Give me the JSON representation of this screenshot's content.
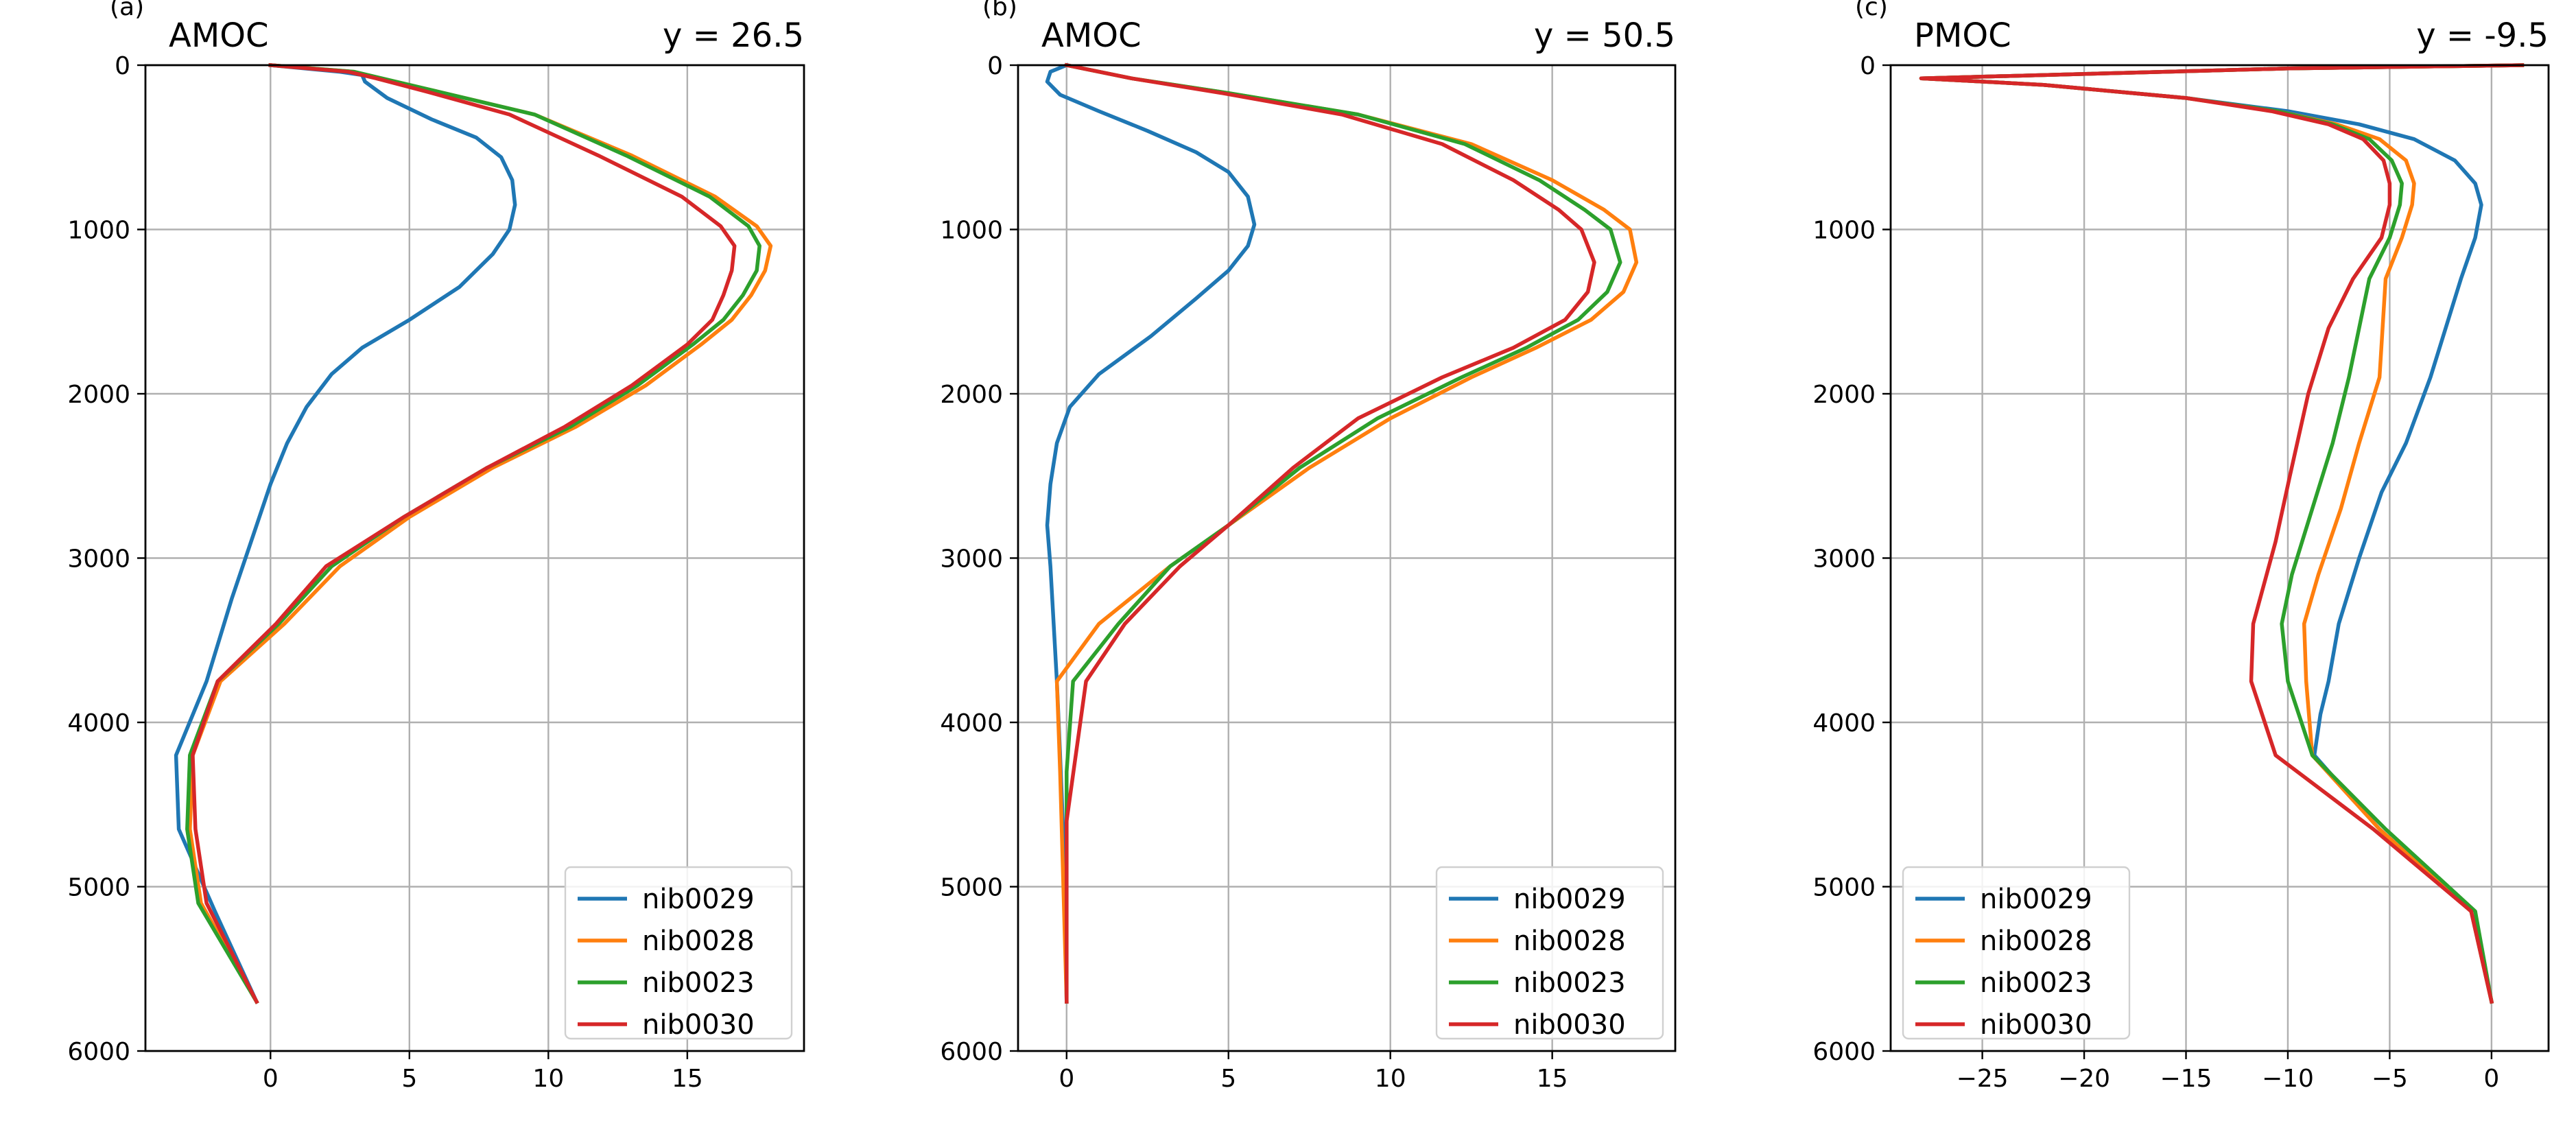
{
  "chart_data": [
    {
      "type": "line",
      "panel": "(a)",
      "title": "AMOC",
      "title_right": "y = 26.5",
      "xlim": [
        -4.5,
        19.2
      ],
      "ylim": [
        6000,
        0
      ],
      "xticks": [
        0,
        5,
        10,
        15
      ],
      "yticks": [
        0,
        1000,
        2000,
        3000,
        4000,
        5000,
        6000
      ],
      "grid": true,
      "legend_position": "lower-right",
      "series": [
        {
          "name": "nib0029",
          "color": "#1f77b4",
          "x": [
            0,
            2.5,
            3.3,
            3.4,
            4.2,
            5.8,
            7.4,
            8.3,
            8.7,
            8.8,
            8.6,
            8.0,
            6.8,
            5.0,
            3.3,
            2.2,
            1.3,
            0.6,
            0.0,
            -0.6,
            -1.4,
            -2.3,
            -3.4,
            -3.3,
            -2.0,
            -0.5
          ],
          "y": [
            0,
            40,
            60,
            100,
            200,
            330,
            440,
            560,
            700,
            850,
            1000,
            1150,
            1350,
            1550,
            1720,
            1880,
            2080,
            2300,
            2550,
            2850,
            3250,
            3750,
            4200,
            4650,
            5150,
            5700
          ]
        },
        {
          "name": "nib0028",
          "color": "#ff7f0e",
          "x": [
            0,
            3.0,
            4.0,
            6.0,
            9.5,
            13.0,
            16.0,
            17.5,
            18.0,
            17.8,
            17.3,
            16.6,
            15.5,
            13.5,
            11.0,
            8.0,
            5.0,
            2.5,
            0.5,
            -1.8,
            -2.8,
            -2.9,
            -2.5,
            -0.5
          ],
          "y": [
            0,
            40,
            80,
            160,
            300,
            550,
            800,
            980,
            1100,
            1250,
            1400,
            1550,
            1700,
            1950,
            2200,
            2450,
            2750,
            3050,
            3400,
            3750,
            4200,
            4650,
            5100,
            5700
          ]
        },
        {
          "name": "nib0023",
          "color": "#2ca02c",
          "x": [
            0,
            3.0,
            4.0,
            6.0,
            9.5,
            12.8,
            15.8,
            17.2,
            17.6,
            17.5,
            17.0,
            16.3,
            15.2,
            13.2,
            10.8,
            7.8,
            4.8,
            2.2,
            0.3,
            -1.9,
            -2.9,
            -3.0,
            -2.6,
            -0.5
          ],
          "y": [
            0,
            40,
            80,
            160,
            300,
            550,
            800,
            980,
            1100,
            1250,
            1400,
            1550,
            1700,
            1950,
            2200,
            2450,
            2750,
            3050,
            3400,
            3750,
            4200,
            4650,
            5100,
            5700
          ]
        },
        {
          "name": "nib0030",
          "color": "#d62728",
          "x": [
            0,
            2.8,
            3.8,
            5.6,
            8.6,
            11.8,
            14.8,
            16.2,
            16.7,
            16.6,
            16.3,
            15.9,
            15.0,
            13.0,
            10.6,
            7.8,
            4.8,
            2.0,
            0.2,
            -1.9,
            -2.8,
            -2.7,
            -2.3,
            -0.5
          ],
          "y": [
            0,
            40,
            80,
            160,
            300,
            550,
            800,
            980,
            1100,
            1250,
            1400,
            1550,
            1700,
            1950,
            2200,
            2450,
            2750,
            3050,
            3400,
            3750,
            4200,
            4650,
            5100,
            5700
          ]
        }
      ]
    },
    {
      "type": "line",
      "panel": "(b)",
      "title": "AMOC",
      "title_right": "y = 50.5",
      "xlim": [
        -1.5,
        18.8
      ],
      "ylim": [
        6000,
        0
      ],
      "xticks": [
        0,
        5,
        10,
        15
      ],
      "yticks": [
        0,
        1000,
        2000,
        3000,
        4000,
        5000,
        6000
      ],
      "grid": true,
      "legend_position": "lower-right",
      "series": [
        {
          "name": "nib0029",
          "color": "#1f77b4",
          "x": [
            0,
            -0.5,
            -0.6,
            -0.2,
            1.0,
            2.5,
            4.0,
            5.0,
            5.6,
            5.8,
            5.6,
            5.0,
            4.0,
            2.6,
            1.0,
            0.1,
            -0.3,
            -0.5,
            -0.6,
            -0.5,
            -0.4,
            -0.3,
            -0.2,
            -0.1,
            0.0
          ],
          "y": [
            0,
            40,
            100,
            180,
            280,
            400,
            530,
            650,
            800,
            970,
            1100,
            1250,
            1420,
            1650,
            1880,
            2080,
            2300,
            2550,
            2800,
            3050,
            3400,
            3750,
            4200,
            4700,
            5700
          ]
        },
        {
          "name": "nib0028",
          "color": "#ff7f0e",
          "x": [
            0,
            2.0,
            5.0,
            9.0,
            12.5,
            15.0,
            16.6,
            17.4,
            17.6,
            17.2,
            16.2,
            14.5,
            12.5,
            10.0,
            7.5,
            5.0,
            3.2,
            1.0,
            -0.3,
            -0.2,
            0.0
          ],
          "y": [
            0,
            80,
            170,
            300,
            480,
            700,
            880,
            1000,
            1200,
            1380,
            1550,
            1720,
            1900,
            2150,
            2450,
            2800,
            3050,
            3400,
            3750,
            4300,
            5700
          ]
        },
        {
          "name": "nib0023",
          "color": "#2ca02c",
          "x": [
            0,
            2.0,
            5.0,
            9.0,
            12.3,
            14.6,
            16.0,
            16.8,
            17.1,
            16.7,
            15.8,
            14.2,
            12.2,
            9.6,
            7.2,
            5.0,
            3.2,
            1.6,
            0.2,
            0.0,
            0.0
          ],
          "y": [
            0,
            80,
            170,
            300,
            480,
            700,
            880,
            1000,
            1200,
            1380,
            1550,
            1720,
            1900,
            2150,
            2450,
            2800,
            3050,
            3400,
            3750,
            4300,
            5700
          ]
        },
        {
          "name": "nib0030",
          "color": "#d62728",
          "x": [
            0,
            2.0,
            4.8,
            8.5,
            11.6,
            13.8,
            15.2,
            15.9,
            16.3,
            16.1,
            15.4,
            13.8,
            11.6,
            9.0,
            7.0,
            5.0,
            3.5,
            1.8,
            0.6,
            0.0,
            0.0
          ],
          "y": [
            0,
            80,
            170,
            300,
            480,
            700,
            880,
            1000,
            1200,
            1380,
            1550,
            1720,
            1900,
            2150,
            2450,
            2800,
            3050,
            3400,
            3750,
            4600,
            5700
          ]
        }
      ]
    },
    {
      "type": "line",
      "panel": "(c)",
      "title": "PMOC",
      "title_right": "y = -9.5",
      "xlim": [
        -29.5,
        2.8
      ],
      "ylim": [
        6000,
        0
      ],
      "xticks": [
        -25,
        -20,
        -15,
        -10,
        -5,
        0
      ],
      "yticks": [
        0,
        1000,
        2000,
        3000,
        4000,
        5000,
        6000
      ],
      "grid": true,
      "legend_position": "lower-left",
      "series": [
        {
          "name": "nib0029",
          "color": "#1f77b4",
          "x": [
            1.5,
            -10.0,
            -28.0,
            -22.0,
            -15.0,
            -10.0,
            -6.5,
            -3.8,
            -1.8,
            -0.8,
            -0.5,
            -0.8,
            -1.5,
            -3.0,
            -4.2,
            -5.4,
            -6.5,
            -7.5,
            -8.0,
            -8.4,
            -8.7,
            -5.5,
            -1.0,
            0.0
          ],
          "y": [
            0,
            20,
            80,
            120,
            200,
            280,
            360,
            450,
            580,
            720,
            850,
            1050,
            1300,
            1900,
            2300,
            2600,
            3000,
            3400,
            3750,
            3950,
            4200,
            4650,
            5150,
            5700
          ]
        },
        {
          "name": "nib0028",
          "color": "#ff7f0e",
          "x": [
            1.5,
            -10.0,
            -28.0,
            -22.0,
            -15.0,
            -10.5,
            -7.6,
            -5.5,
            -4.2,
            -3.8,
            -3.9,
            -4.4,
            -5.2,
            -5.5,
            -6.5,
            -7.4,
            -8.5,
            -9.2,
            -9.1,
            -8.8,
            -5.5,
            -1.0,
            0.0
          ],
          "y": [
            0,
            20,
            80,
            120,
            200,
            280,
            360,
            450,
            580,
            720,
            850,
            1050,
            1300,
            1900,
            2300,
            2700,
            3100,
            3400,
            3750,
            4200,
            4650,
            5150,
            5700
          ]
        },
        {
          "name": "nib0023",
          "color": "#2ca02c",
          "x": [
            1.5,
            -10.0,
            -28.0,
            -22.0,
            -15.0,
            -10.5,
            -7.8,
            -6.0,
            -4.9,
            -4.4,
            -4.5,
            -5.0,
            -6.0,
            -7.0,
            -7.8,
            -8.8,
            -9.8,
            -10.3,
            -10.0,
            -8.8,
            -5.2,
            -0.8,
            0.0
          ],
          "y": [
            0,
            20,
            80,
            120,
            200,
            280,
            360,
            450,
            580,
            720,
            850,
            1050,
            1300,
            1900,
            2300,
            2700,
            3100,
            3400,
            3750,
            4200,
            4650,
            5150,
            5700
          ]
        },
        {
          "name": "nib0030",
          "color": "#d62728",
          "x": [
            1.5,
            -10.0,
            -28.0,
            -22.0,
            -15.0,
            -10.8,
            -8.0,
            -6.3,
            -5.3,
            -5.0,
            -5.0,
            -5.4,
            -6.8,
            -8.0,
            -9.0,
            -9.9,
            -10.6,
            -11.7,
            -11.8,
            -10.6,
            -5.8,
            -1.0,
            0.0
          ],
          "y": [
            0,
            20,
            80,
            120,
            200,
            280,
            360,
            450,
            580,
            720,
            850,
            1050,
            1300,
            1600,
            2000,
            2500,
            2900,
            3400,
            3750,
            4200,
            4650,
            5150,
            5700
          ]
        }
      ]
    }
  ]
}
